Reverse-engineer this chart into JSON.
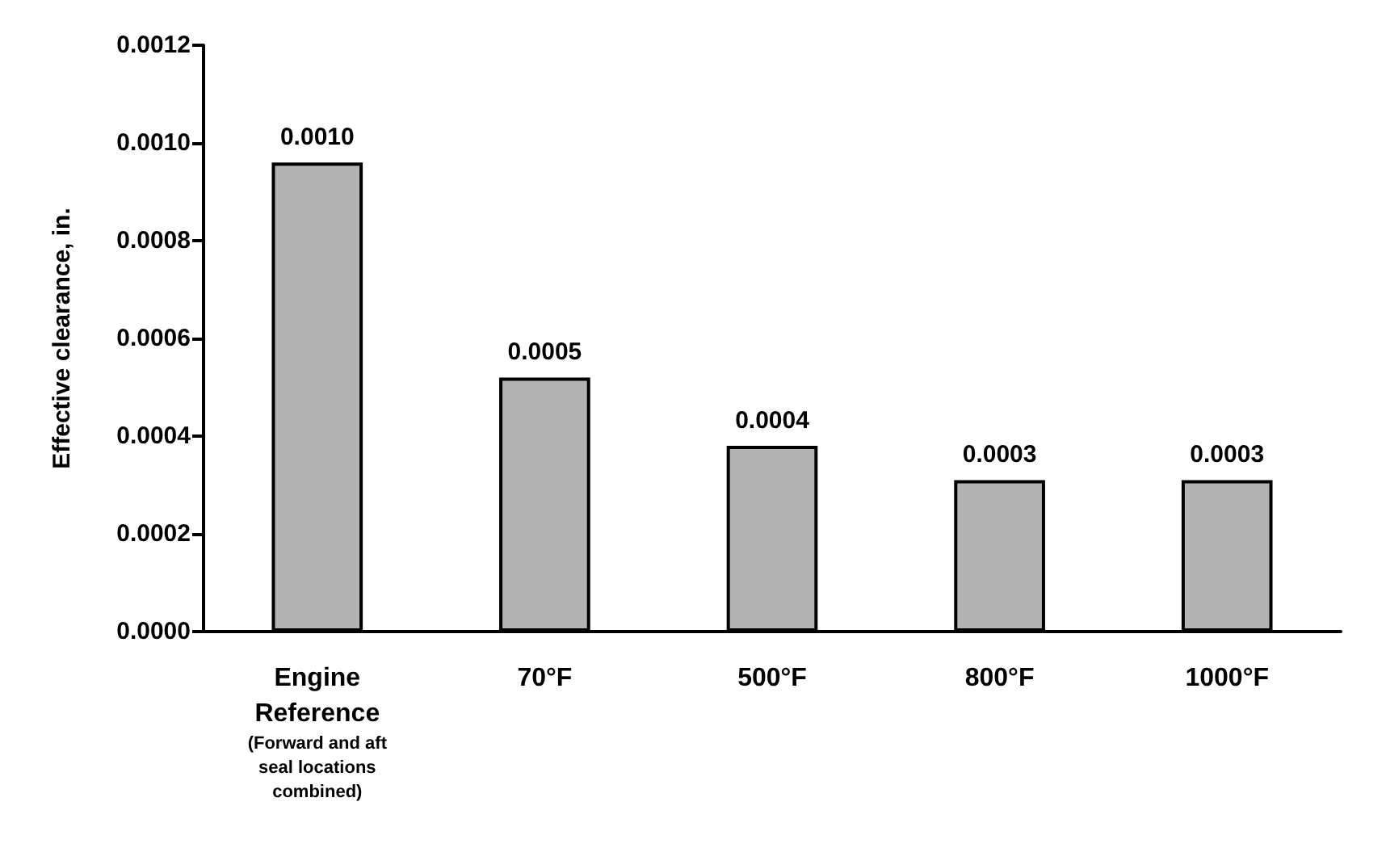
{
  "chart_data": {
    "type": "bar",
    "ylabel": "Effective clearance, in.",
    "categories": [
      "Engine\nReference\n(Forward and aft\nseal locations\ncombined)",
      "70°F",
      "500°F",
      "800°F",
      "1000°F"
    ],
    "values": [
      0.00096,
      0.00052,
      0.00038,
      0.00031,
      0.00031
    ],
    "value_labels": [
      "0.0010",
      "0.0005",
      "0.0004",
      "0.0003",
      "0.0003"
    ],
    "color": "#b3b3b3",
    "ylim": [
      0,
      0.0012
    ],
    "yticks": [
      {
        "value": 0,
        "label": "0.0000"
      },
      {
        "value": 0.0002,
        "label": "0.0002"
      },
      {
        "value": 0.0004,
        "label": "0.0004"
      },
      {
        "value": 0.0006,
        "label": "0.0006"
      },
      {
        "value": 0.0008,
        "label": "0.0008"
      },
      {
        "value": 0.001,
        "label": "0.0010"
      },
      {
        "value": 0.0012,
        "label": "0.0012"
      }
    ],
    "grid": false
  }
}
